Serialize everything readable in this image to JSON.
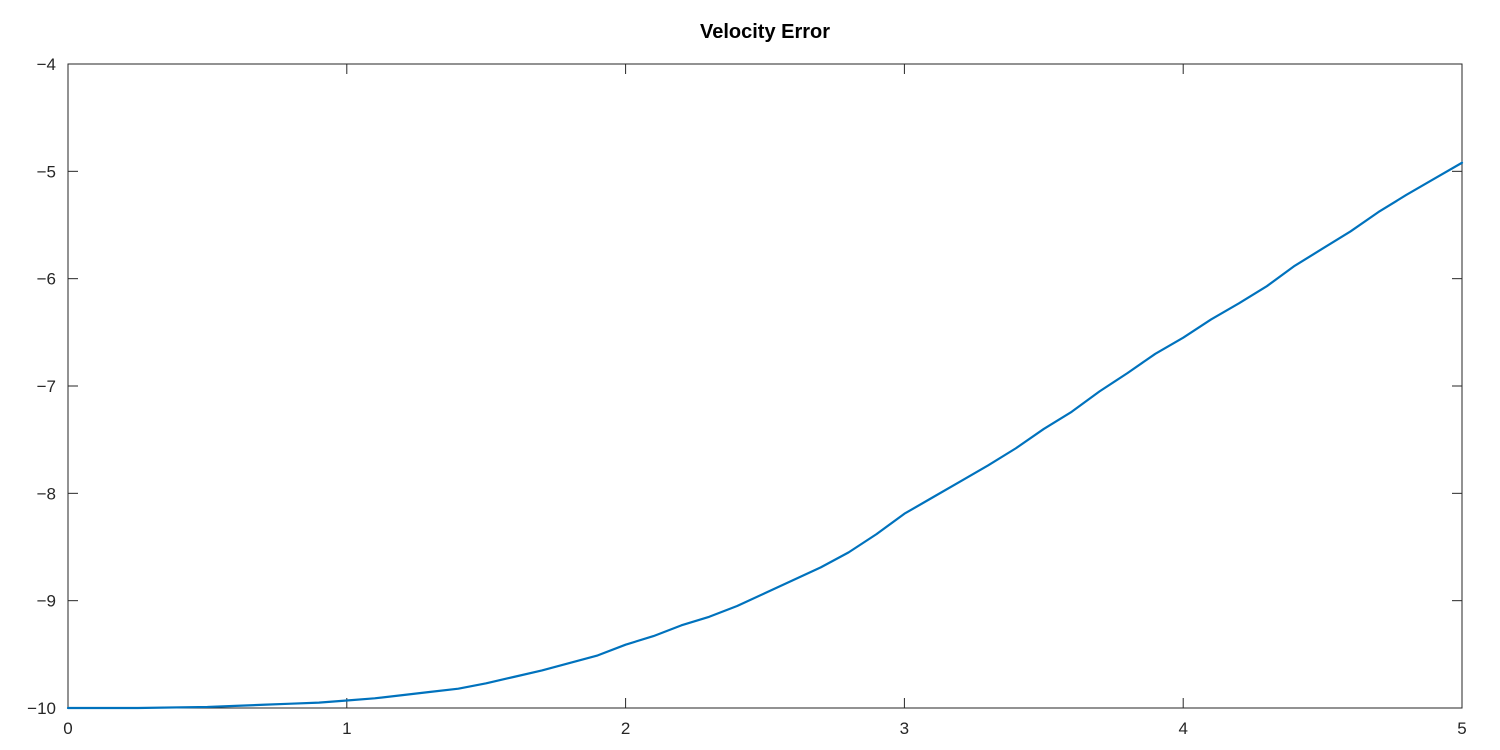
{
  "chart_data": {
    "type": "line",
    "title": "Velocity Error",
    "xlabel": "",
    "ylabel": "",
    "xlim": [
      0,
      5
    ],
    "ylim": [
      -10,
      -4
    ],
    "x_ticks": [
      0,
      1,
      2,
      3,
      4,
      5
    ],
    "x_tick_labels": [
      "0",
      "1",
      "2",
      "3",
      "4",
      "5"
    ],
    "y_ticks": [
      -10,
      -9,
      -8,
      -7,
      -6,
      -5,
      -4
    ],
    "y_tick_labels": [
      "−10",
      "−9",
      "−8",
      "−7",
      "−6",
      "−5",
      "−4"
    ],
    "grid": false,
    "legend": "none",
    "series": [
      {
        "color": "#0072bd",
        "x": [
          0,
          0.25,
          0.5,
          0.6,
          0.7,
          0.8,
          0.9,
          1.0,
          1.1,
          1.2,
          1.3,
          1.4,
          1.5,
          1.6,
          1.7,
          1.8,
          1.9,
          2.0,
          2.1,
          2.2,
          2.3,
          2.4,
          2.5,
          2.6,
          2.7,
          2.8,
          2.9,
          3.0,
          3.1,
          3.2,
          3.3,
          3.4,
          3.5,
          3.6,
          3.7,
          3.8,
          3.9,
          4.0,
          4.1,
          4.2,
          4.3,
          4.4,
          4.5,
          4.6,
          4.7,
          4.8,
          4.9,
          5.0
        ],
        "y": [
          -10.0,
          -10.0,
          -9.99,
          -9.98,
          -9.97,
          -9.96,
          -9.95,
          -9.93,
          -9.91,
          -9.88,
          -9.85,
          -9.82,
          -9.77,
          -9.71,
          -9.65,
          -9.58,
          -9.51,
          -9.41,
          -9.33,
          -9.23,
          -9.15,
          -9.05,
          -8.93,
          -8.81,
          -8.69,
          -8.55,
          -8.38,
          -8.19,
          -8.04,
          -7.89,
          -7.74,
          -7.58,
          -7.4,
          -7.24,
          -7.05,
          -6.88,
          -6.7,
          -6.55,
          -6.38,
          -6.23,
          -6.07,
          -5.88,
          -5.72,
          -5.56,
          -5.38,
          -5.22,
          -5.07,
          -4.92
        ]
      }
    ]
  }
}
